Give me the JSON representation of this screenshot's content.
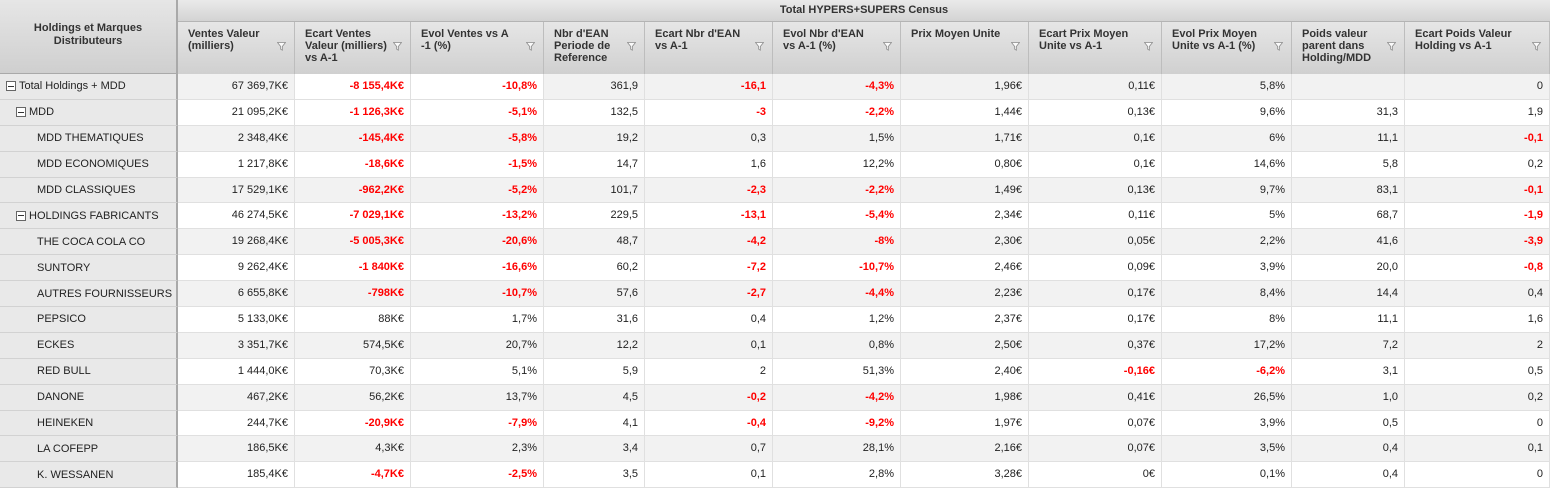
{
  "grid": {
    "row_header_title": "Holdings et Marques Distributeurs",
    "group_header": "Total HYPERS+SUPERS Census",
    "columns": [
      "Ventes Valeur (milliers)",
      "Ecart Ventes Valeur (milliers) vs A-1",
      "Evol Ventes vs A -1 (%)",
      "Nbr d'EAN Periode de Reference",
      "Ecart Nbr d'EAN vs A-1",
      "Evol Nbr d'EAN vs A-1 (%)",
      "Prix Moyen Unite",
      "Ecart Prix Moyen Unite vs A-1",
      "Evol Prix Moyen Unite vs A-1 (%)",
      "Poids valeur parent dans Holding/MDD",
      "Ecart Poids Valeur Holding vs A-1"
    ],
    "rows": [
      {
        "label": "Total Holdings + MDD",
        "level": 0,
        "expanded": true,
        "values": [
          "67 369,7K€",
          "-8 155,4K€",
          "-10,8%",
          "361,9",
          "-16,1",
          "-4,3%",
          "1,96€",
          "0,11€",
          "5,8%",
          "",
          "0"
        ]
      },
      {
        "label": "MDD",
        "level": 1,
        "expanded": true,
        "values": [
          "21 095,2K€",
          "-1 126,3K€",
          "-5,1%",
          "132,5",
          "-3",
          "-2,2%",
          "1,44€",
          "0,13€",
          "9,6%",
          "31,3",
          "1,9"
        ]
      },
      {
        "label": "MDD THEMATIQUES",
        "level": 2,
        "values": [
          "2 348,4K€",
          "-145,4K€",
          "-5,8%",
          "19,2",
          "0,3",
          "1,5%",
          "1,71€",
          "0,1€",
          "6%",
          "11,1",
          "-0,1"
        ]
      },
      {
        "label": "MDD ECONOMIQUES",
        "level": 2,
        "values": [
          "1 217,8K€",
          "-18,6K€",
          "-1,5%",
          "14,7",
          "1,6",
          "12,2%",
          "0,80€",
          "0,1€",
          "14,6%",
          "5,8",
          "0,2"
        ]
      },
      {
        "label": "MDD CLASSIQUES",
        "level": 2,
        "values": [
          "17 529,1K€",
          "-962,2K€",
          "-5,2%",
          "101,7",
          "-2,3",
          "-2,2%",
          "1,49€",
          "0,13€",
          "9,7%",
          "83,1",
          "-0,1"
        ]
      },
      {
        "label": "HOLDINGS FABRICANTS",
        "level": 1,
        "expanded": true,
        "values": [
          "46 274,5K€",
          "-7 029,1K€",
          "-13,2%",
          "229,5",
          "-13,1",
          "-5,4%",
          "2,34€",
          "0,11€",
          "5%",
          "68,7",
          "-1,9"
        ]
      },
      {
        "label": "THE COCA COLA CO",
        "level": 2,
        "values": [
          "19 268,4K€",
          "-5 005,3K€",
          "-20,6%",
          "48,7",
          "-4,2",
          "-8%",
          "2,30€",
          "0,05€",
          "2,2%",
          "41,6",
          "-3,9"
        ]
      },
      {
        "label": "SUNTORY",
        "level": 2,
        "values": [
          "9 262,4K€",
          "-1 840K€",
          "-16,6%",
          "60,2",
          "-7,2",
          "-10,7%",
          "2,46€",
          "0,09€",
          "3,9%",
          "20,0",
          "-0,8"
        ]
      },
      {
        "label": "AUTRES FOURNISSEURS",
        "level": 2,
        "values": [
          "6 655,8K€",
          "-798K€",
          "-10,7%",
          "57,6",
          "-2,7",
          "-4,4%",
          "2,23€",
          "0,17€",
          "8,4%",
          "14,4",
          "0,4"
        ]
      },
      {
        "label": "PEPSICO",
        "level": 2,
        "values": [
          "5 133,0K€",
          "88K€",
          "1,7%",
          "31,6",
          "0,4",
          "1,2%",
          "2,37€",
          "0,17€",
          "8%",
          "11,1",
          "1,6"
        ]
      },
      {
        "label": "ECKES",
        "level": 2,
        "values": [
          "3 351,7K€",
          "574,5K€",
          "20,7%",
          "12,2",
          "0,1",
          "0,8%",
          "2,50€",
          "0,37€",
          "17,2%",
          "7,2",
          "2"
        ]
      },
      {
        "label": "RED BULL",
        "level": 2,
        "values": [
          "1 444,0K€",
          "70,3K€",
          "5,1%",
          "5,9",
          "2",
          "51,3%",
          "2,40€",
          "-0,16€",
          "-6,2%",
          "3,1",
          "0,5"
        ]
      },
      {
        "label": "DANONE",
        "level": 2,
        "values": [
          "467,2K€",
          "56,2K€",
          "13,7%",
          "4,5",
          "-0,2",
          "-4,2%",
          "1,98€",
          "0,41€",
          "26,5%",
          "1,0",
          "0,2"
        ]
      },
      {
        "label": "HEINEKEN",
        "level": 2,
        "values": [
          "244,7K€",
          "-20,9K€",
          "-7,9%",
          "4,1",
          "-0,4",
          "-9,2%",
          "1,97€",
          "0,07€",
          "3,9%",
          "0,5",
          "0"
        ]
      },
      {
        "label": "LA COFEPP",
        "level": 2,
        "values": [
          "186,5K€",
          "4,3K€",
          "2,3%",
          "3,4",
          "0,7",
          "28,1%",
          "2,16€",
          "0,07€",
          "3,5%",
          "0,4",
          "0,1"
        ]
      },
      {
        "label": "K. WESSANEN",
        "level": 2,
        "values": [
          "185,4K€",
          "-4,7K€",
          "-2,5%",
          "3,5",
          "0,1",
          "2,8%",
          "3,28€",
          "0€",
          "0,1%",
          "0,4",
          "0"
        ]
      }
    ]
  },
  "colors": {
    "negative": "#ff0000",
    "header_bg": "#d6d6d6",
    "row_label_bg": "#e9e9e9",
    "alt_row_bg": "#f2f2f2"
  },
  "icons": {
    "expander": "collapse-minus-icon",
    "filter": "filter-funnel-icon"
  }
}
